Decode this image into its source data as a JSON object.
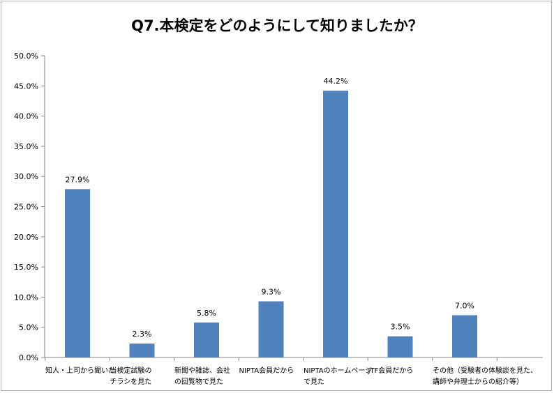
{
  "chart_data": {
    "type": "bar",
    "title": "Q7.本検定をどのようにして知りましたか？",
    "xlabel": "",
    "ylabel": "",
    "ylim": [
      0,
      50
    ],
    "yticks": [
      "0.0%",
      "5.0%",
      "10.0%",
      "15.0%",
      "20.0%",
      "25.0%",
      "30.0%",
      "35.0%",
      "40.0%",
      "45.0%",
      "50.0%"
    ],
    "categories": [
      [
        "知人・上司から聞いた"
      ],
      [
        "当検定試験の",
        "チラシを見た"
      ],
      [
        "新聞や雑誌、会社",
        "の回覧物で見た"
      ],
      [
        "NIPTA会員だから"
      ],
      [
        "NIPTAのホームページ",
        "で見た"
      ],
      [
        "JTF会員だから"
      ],
      [
        "その他（受験者の体験談を見た、",
        "講師や弁理士からの紹介等）"
      ]
    ],
    "values": [
      27.9,
      2.3,
      5.8,
      9.3,
      44.2,
      3.5,
      7.0
    ],
    "data_labels": [
      "27.9%",
      "2.3%",
      "5.8%",
      "9.3%",
      "44.2%",
      "3.5%",
      "7.0%"
    ],
    "bar_color": "#4f81bd",
    "grid": false,
    "legend": "none"
  }
}
